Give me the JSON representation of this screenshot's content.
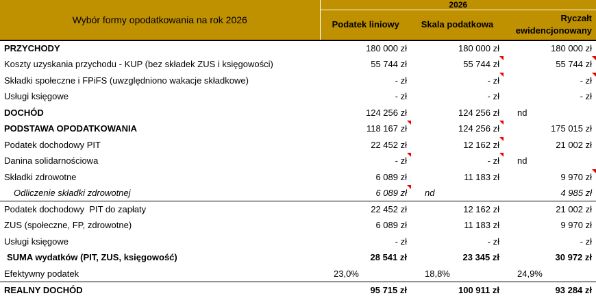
{
  "header": {
    "title": "Wybór formy opodatkowania na rok 2026",
    "year": "2026",
    "columns": [
      "Podatek liniowy",
      "Skala podatkowa",
      "Ryczałt ewidencjonowany"
    ]
  },
  "table": {
    "rows": [
      {
        "label": "PRZYCHODY",
        "values": [
          "180 000 zł",
          "180 000 zł",
          "180 000 zł"
        ]
      },
      {
        "label": "Koszty uzyskania przychodu - KUP (bez składek ZUS i księgowości)",
        "values": [
          "55 744 zł",
          "55 744 zł",
          "55 744 zł"
        ]
      },
      {
        "label": "Składki społeczne i FPiFS (uwzględniono wakacje składkowe)",
        "values": [
          "- zł",
          "- zł",
          "- zł"
        ]
      },
      {
        "label": "Usługi księgowe",
        "values": [
          "- zł",
          "- zł",
          "- zł"
        ]
      },
      {
        "label": "DOCHÓD",
        "values": [
          "124 256 zł",
          "124 256 zł",
          "nd"
        ]
      },
      {
        "label": "PODSTAWA OPODATKOWANIA",
        "values": [
          "118 167 zł",
          "124 256 zł",
          "175 015 zł"
        ]
      },
      {
        "label": "Podatek dochodowy PIT",
        "values": [
          "22 452 zł",
          "12 162 zł",
          "21 002 zł"
        ]
      },
      {
        "label": "Danina solidarnościowa",
        "values": [
          "- zł",
          "- zł",
          "nd"
        ]
      },
      {
        "label": "Składki zdrowotne",
        "values": [
          "6 089 zł",
          "11 183 zł",
          "9 970 zł"
        ]
      },
      {
        "label": "Odliczenie składki zdrowotnej",
        "values": [
          "6 089 zł",
          "nd",
          "4 985 zł"
        ]
      },
      {
        "label": "Podatek dochodowy  PIT do zapłaty",
        "values": [
          "22 452 zł",
          "12 162 zł",
          "21 002 zł"
        ]
      },
      {
        "label": "ZUS (społeczne, FP, zdrowotne)",
        "values": [
          "6 089 zł",
          "11 183 zł",
          "9 970 zł"
        ]
      },
      {
        "label": "Usługi księgowe",
        "values": [
          "- zł",
          "- zł",
          "- zł"
        ]
      },
      {
        "label": "SUMA wydatków (PIT, ZUS, księgowość)",
        "values": [
          "28 541 zł",
          "23 345 zł",
          "30 972 zł"
        ]
      },
      {
        "label": "Efektywny podatek",
        "values": [
          "23,0%",
          "18,8%",
          "24,9%"
        ]
      },
      {
        "label": "REALNY DOCHÓD",
        "values": [
          "95 715 zł",
          "100 911 zł",
          "93 284 zł"
        ]
      }
    ]
  }
}
